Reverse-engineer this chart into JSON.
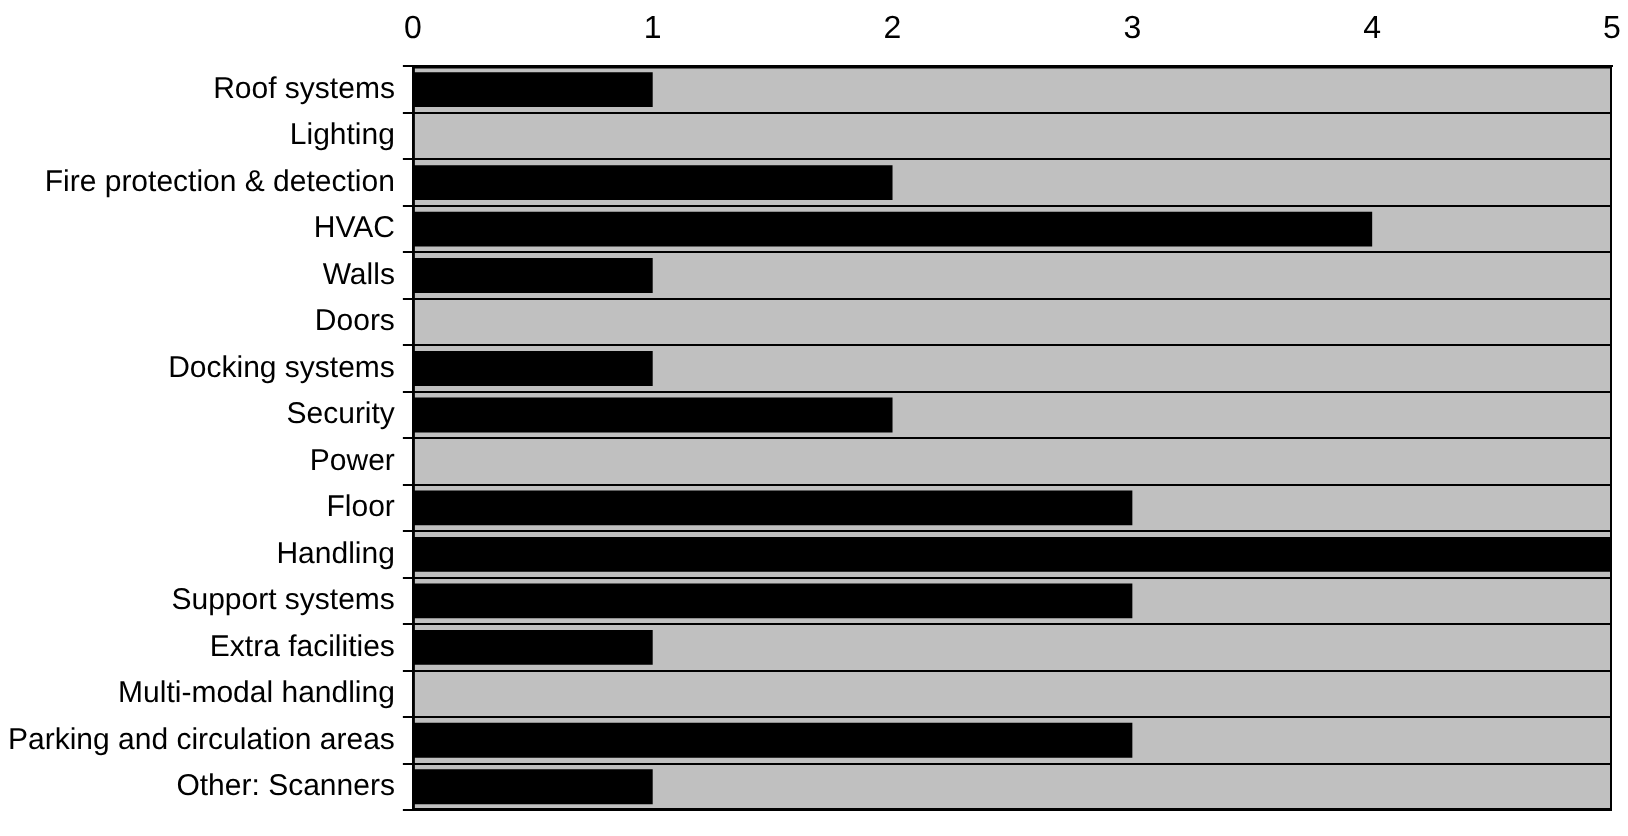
{
  "chart_data": {
    "type": "bar",
    "orientation": "horizontal",
    "categories": [
      "Roof systems",
      "Lighting",
      "Fire protection & detection",
      "HVAC",
      "Walls",
      "Doors",
      "Docking systems",
      "Security",
      "Power",
      "Floor",
      "Handling",
      "Support systems",
      "Extra facilities",
      "Multi-modal handling",
      "Parking and circulation areas",
      "Other: Scanners"
    ],
    "values": [
      1,
      0,
      2,
      4,
      1,
      0,
      1,
      2,
      0,
      3,
      5,
      3,
      1,
      0,
      3,
      1
    ],
    "color": "#000000",
    "xlim": [
      0,
      5
    ],
    "xticks": [
      0,
      1,
      2,
      3,
      4,
      5
    ],
    "grid": "y",
    "legend": false
  }
}
